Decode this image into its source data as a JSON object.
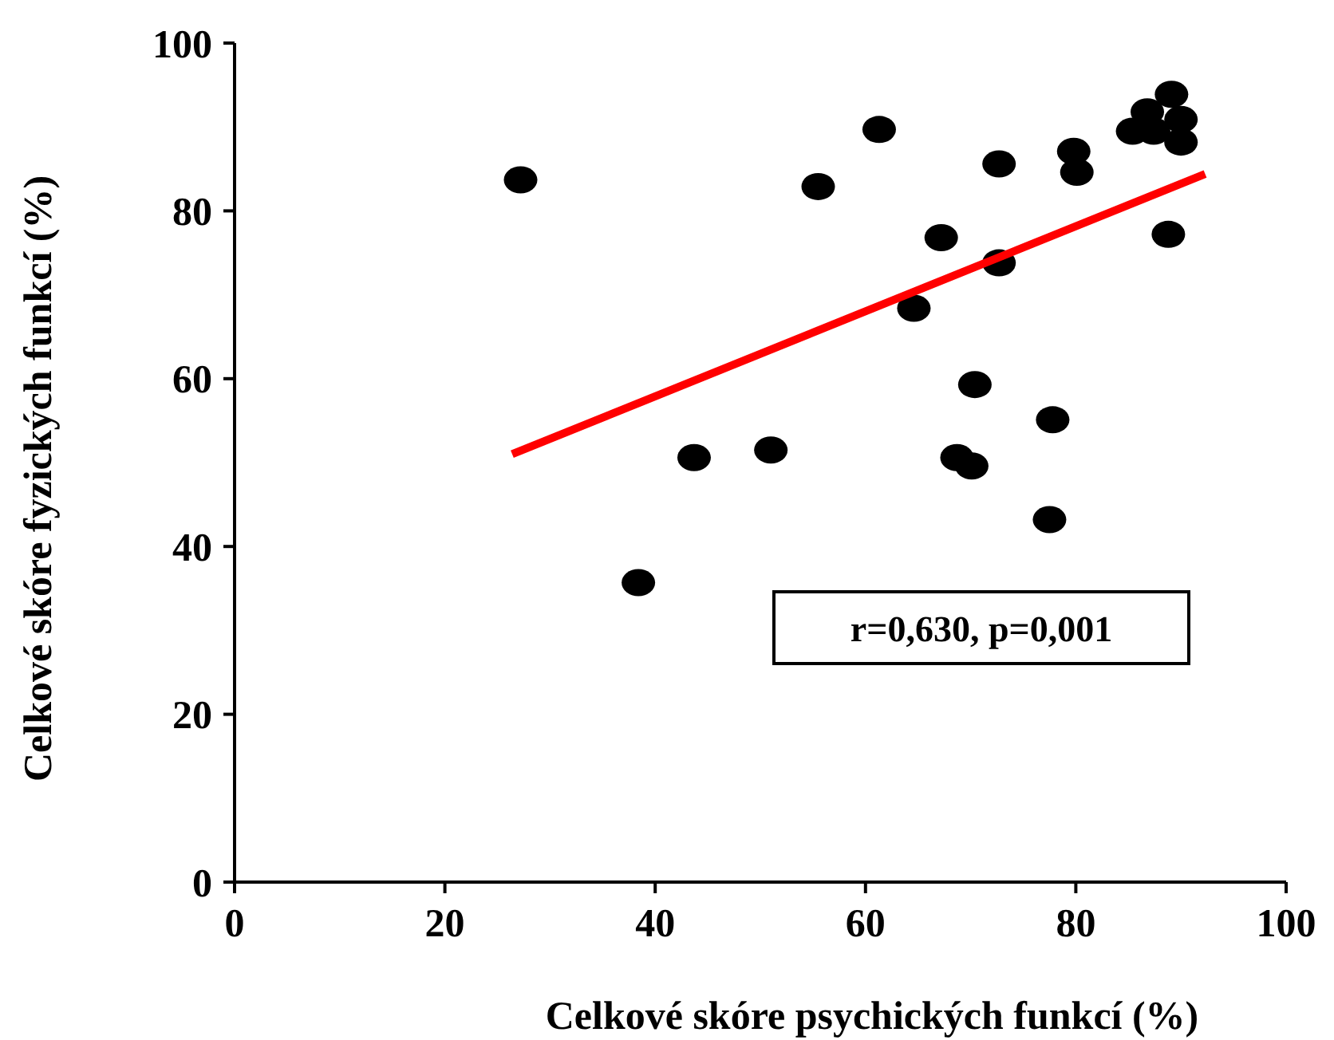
{
  "chart_data": {
    "type": "scatter",
    "xlabel": "Celkové skóre psychických funkcí (%)",
    "ylabel": "Celkové skóre fyzických funkcí (%)",
    "xlim": [
      0,
      100
    ],
    "ylim": [
      0,
      100
    ],
    "xticks": [
      0,
      20,
      40,
      60,
      80,
      100
    ],
    "yticks": [
      0,
      20,
      40,
      60,
      80,
      100
    ],
    "grid": false,
    "marker": "circle",
    "series": [
      {
        "color": "#000000",
        "x": [
          27.2,
          38.4,
          43.7,
          51.0,
          55.5,
          61.3,
          64.6,
          67.2,
          70.4,
          68.7,
          70.1,
          72.7,
          72.7,
          77.8,
          77.5,
          79.8,
          80.1,
          85.4,
          86.8,
          87.4,
          89.1,
          90.0,
          90.0,
          88.8
        ],
        "values": [
          83.7,
          35.7,
          50.6,
          51.5,
          82.9,
          89.7,
          68.4,
          76.8,
          59.3,
          50.6,
          49.6,
          73.8,
          85.6,
          55.1,
          43.2,
          87.1,
          84.6,
          89.5,
          91.8,
          89.5,
          93.9,
          90.9,
          88.2,
          77.2
        ]
      },
      {
        "type": "line",
        "marker": "none",
        "color": "#ff0000",
        "x": [
          26.4,
          92.3
        ],
        "values": [
          51.0,
          84.4
        ]
      }
    ],
    "annotations": [
      "r=0,630, p=0,001"
    ]
  }
}
